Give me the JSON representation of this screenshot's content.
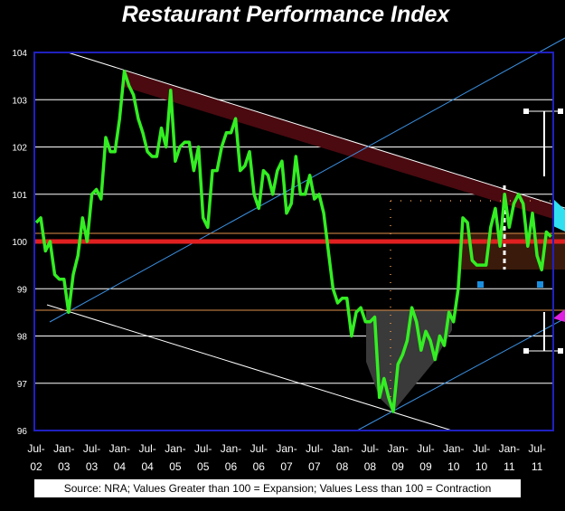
{
  "chart_data": {
    "type": "line",
    "title": "Restaurant Performance Index",
    "note": "Source: NRA; Values Greater than 100 = Expansion; Values Less than 100 = Contraction",
    "categories": [
      "Jul-02",
      null,
      null,
      null,
      null,
      null,
      "Jan-03",
      null,
      null,
      null,
      null,
      null,
      "Jul-03",
      null,
      null,
      null,
      null,
      null,
      "Jan-04",
      null,
      null,
      null,
      null,
      null,
      "Jul-04",
      null,
      null,
      null,
      null,
      null,
      "Jan-05",
      null,
      null,
      null,
      null,
      null,
      "Jul-05",
      null,
      null,
      null,
      null,
      null,
      "Jan-06",
      null,
      null,
      null,
      null,
      null,
      "Jul-06",
      null,
      null,
      null,
      null,
      null,
      "Jan-07",
      null,
      null,
      null,
      null,
      null,
      "Jul-07",
      null,
      null,
      null,
      null,
      null,
      "Jan-08",
      null,
      null,
      null,
      null,
      null,
      "Jul-08",
      null,
      null,
      null,
      null,
      null,
      "Jan-09",
      null,
      null,
      null,
      null,
      null,
      "Jul-09",
      null,
      null,
      null,
      null,
      null,
      "Jan-10",
      null,
      null,
      null,
      null,
      null,
      "Jul-10",
      null,
      null,
      null,
      null,
      null,
      "Jan-11",
      null,
      null,
      null,
      null,
      null,
      "Jul-11",
      null,
      null,
      null
    ],
    "series": [
      {
        "name": "Restaurant Performance Index",
        "color": "#33ee22",
        "values": [
          100.4,
          100.5,
          99.8,
          100.0,
          99.3,
          99.2,
          99.2,
          98.5,
          99.3,
          99.7,
          100.5,
          100.0,
          101.0,
          101.1,
          100.9,
          102.2,
          101.9,
          101.9,
          102.6,
          103.6,
          103.3,
          103.1,
          102.6,
          102.3,
          101.9,
          101.8,
          101.8,
          102.4,
          102.0,
          103.2,
          101.7,
          102.0,
          102.1,
          102.1,
          101.5,
          102.0,
          100.5,
          100.3,
          101.5,
          101.5,
          102.0,
          102.3,
          102.3,
          102.6,
          101.5,
          101.6,
          101.9,
          101.0,
          100.7,
          101.5,
          101.4,
          101.0,
          101.5,
          101.7,
          100.6,
          100.8,
          101.8,
          101.0,
          101.0,
          101.4,
          100.9,
          101.0,
          100.6,
          99.8,
          99.0,
          98.7,
          98.8,
          98.8,
          98.0,
          98.5,
          98.6,
          98.3,
          98.3,
          98.4,
          96.7,
          97.1,
          96.7,
          96.4,
          97.4,
          97.6,
          97.9,
          98.6,
          98.3,
          97.7,
          98.1,
          97.9,
          97.5,
          98.0,
          97.8,
          98.5,
          98.3,
          99.0,
          100.5,
          100.4,
          99.6,
          99.5,
          99.5,
          99.5,
          100.3,
          100.7,
          99.9,
          101.0,
          100.3,
          100.8,
          101.0,
          100.8,
          99.9,
          100.6,
          99.7,
          99.4,
          100.2,
          100.1
        ]
      }
    ],
    "reference_line": {
      "value": 100,
      "color": "#e02020"
    },
    "ylim": [
      96,
      104
    ],
    "yticks": [
      96,
      97,
      98,
      99,
      100,
      101,
      102,
      103,
      104
    ],
    "grid": true
  }
}
